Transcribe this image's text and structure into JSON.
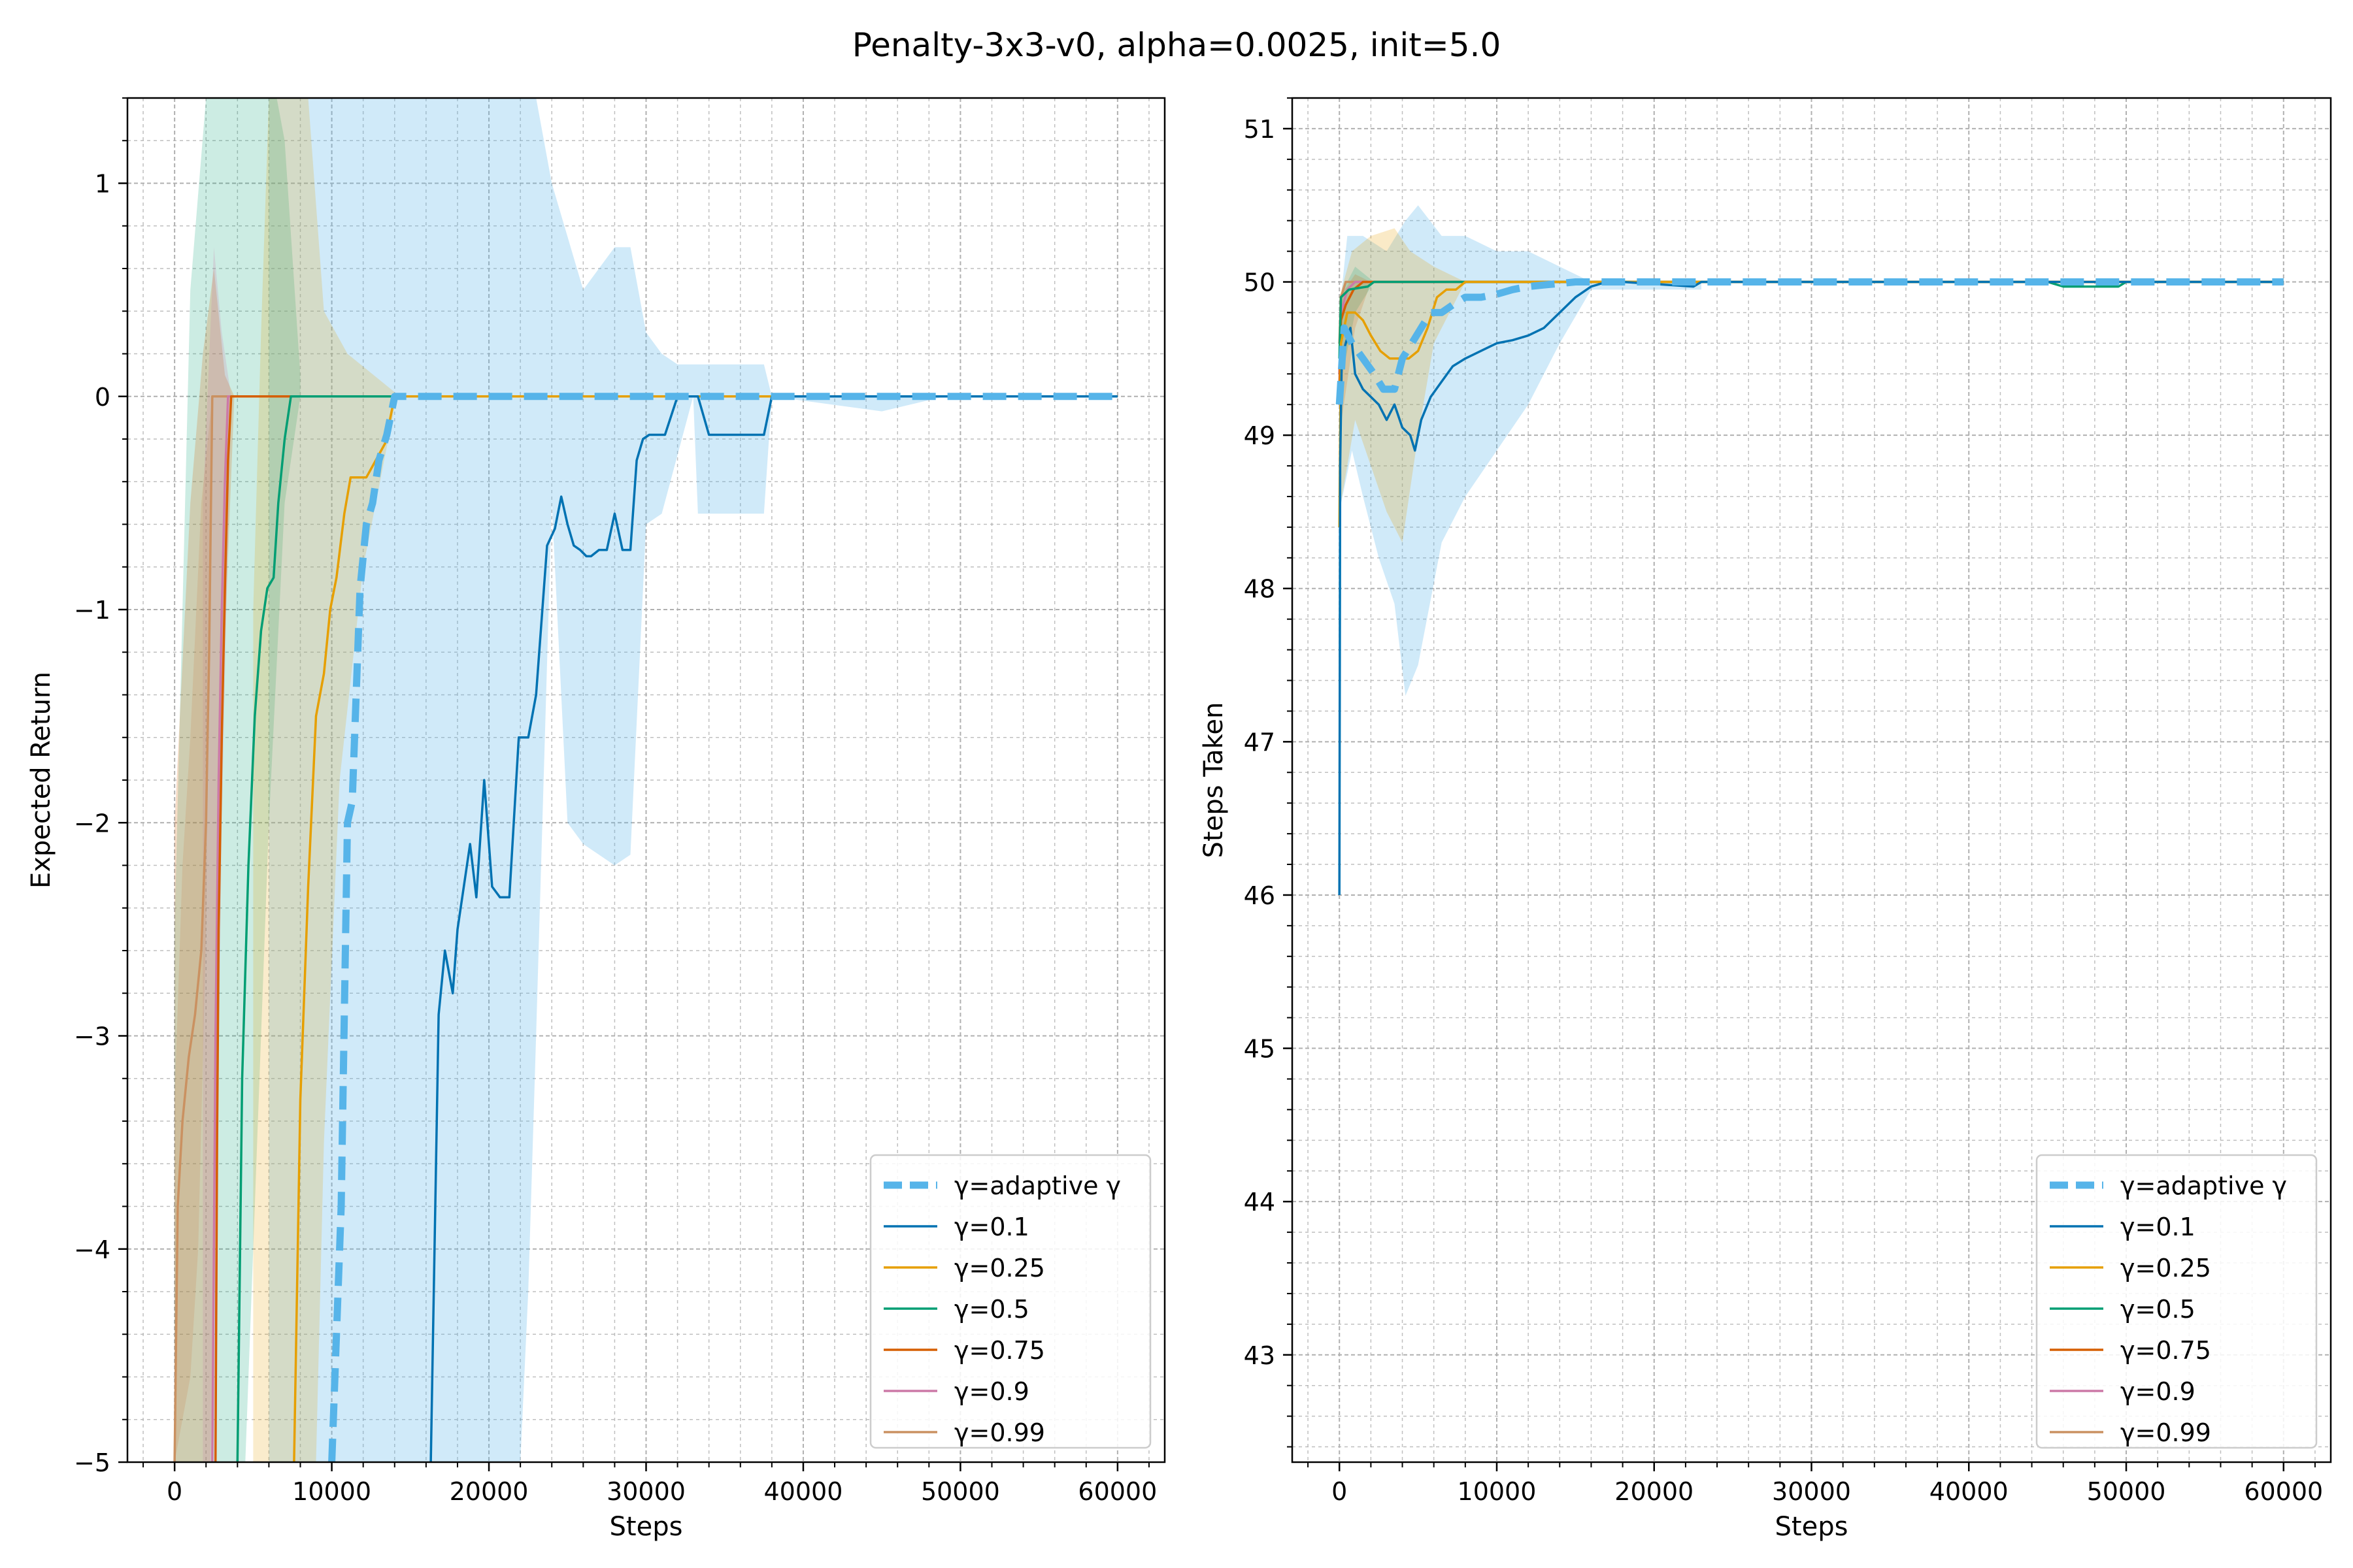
{
  "figure": {
    "title": "Penalty-3x3-v0, alpha=0.0025, init=5.0"
  },
  "colors": {
    "adaptive": "#56b4e9",
    "g01": "#0072b2",
    "g025": "#e69f00",
    "g05": "#009e73",
    "g075": "#d55e00",
    "g09": "#cc79a7",
    "g099": "#ca9161",
    "grid": "#b0b0b0"
  },
  "chart_data": [
    {
      "type": "line",
      "xlabel": "Steps",
      "ylabel": "Expected Return",
      "xlim": [
        -3000,
        63000
      ],
      "ylim": [
        -5,
        1.4
      ],
      "xticks": [
        0,
        10000,
        20000,
        30000,
        40000,
        50000,
        60000
      ],
      "xtick_labels": [
        "0",
        "10000",
        "20000",
        "30000",
        "40000",
        "50000",
        "60000"
      ],
      "yticks": [
        1,
        0,
        -1,
        -2,
        -3,
        -4,
        -5
      ],
      "ytick_labels": [
        "1",
        "0",
        "−1",
        "−2",
        "−3",
        "−4",
        "−5"
      ],
      "grid": true,
      "legend_position": "lower right",
      "series": [
        {
          "name": "γ=adaptive γ",
          "color": "#56b4e9",
          "style": "dashed",
          "x": [
            10000,
            10600,
            11000,
            11300,
            11800,
            12200,
            12600,
            13000,
            13500,
            14000,
            60000
          ],
          "y": [
            -5,
            -3.8,
            -2.0,
            -1.9,
            -0.9,
            -0.6,
            -0.5,
            -0.3,
            -0.18,
            0,
            0
          ]
        },
        {
          "name": "γ=0.1",
          "color": "#0072b2",
          "style": "solid",
          "x": [
            16300,
            16800,
            17200,
            17700,
            18000,
            18400,
            18800,
            19200,
            19700,
            20200,
            20700,
            21300,
            21900,
            22500,
            23000,
            23400,
            23700,
            24200,
            24600,
            25000,
            25400,
            25800,
            26200,
            26500,
            27000,
            27500,
            28000,
            28500,
            29000,
            29400,
            29800,
            30200,
            30700,
            31200,
            32000,
            33300,
            34000,
            37500,
            38000,
            60000
          ],
          "y": [
            -5,
            -2.9,
            -2.6,
            -2.8,
            -2.5,
            -2.3,
            -2.1,
            -2.35,
            -1.8,
            -2.3,
            -2.35,
            -2.35,
            -1.6,
            -1.6,
            -1.4,
            -1.0,
            -0.7,
            -0.62,
            -0.47,
            -0.6,
            -0.7,
            -0.72,
            -0.75,
            -0.75,
            -0.72,
            -0.72,
            -0.55,
            -0.72,
            -0.72,
            -0.3,
            -0.2,
            -0.18,
            -0.18,
            -0.18,
            0,
            0,
            -0.18,
            -0.18,
            0,
            0
          ]
        },
        {
          "name": "γ=0.25",
          "color": "#e69f00",
          "style": "solid",
          "x": [
            7600,
            8000,
            8500,
            9000,
            9500,
            9900,
            10300,
            10800,
            11200,
            11700,
            12200,
            12800,
            13400,
            14000,
            60000
          ],
          "y": [
            -5,
            -3.3,
            -2.3,
            -1.5,
            -1.3,
            -1.0,
            -0.85,
            -0.55,
            -0.38,
            -0.38,
            -0.38,
            -0.3,
            -0.22,
            0,
            0
          ]
        },
        {
          "name": "γ=0.5",
          "color": "#009e73",
          "style": "solid",
          "x": [
            4000,
            4300,
            4700,
            5100,
            5500,
            5900,
            6300,
            6600,
            7000,
            7400,
            7800,
            60000
          ],
          "y": [
            -5,
            -3.2,
            -2.2,
            -1.5,
            -1.1,
            -0.9,
            -0.85,
            -0.5,
            -0.2,
            0,
            0,
            0
          ]
        },
        {
          "name": "γ=0.75",
          "color": "#d55e00",
          "style": "solid",
          "x": [
            2600,
            2700,
            2800,
            3000,
            3200,
            3400,
            3600,
            60000
          ],
          "y": [
            -5,
            -3.5,
            -2.5,
            -1.6,
            -0.9,
            -0.3,
            0,
            0
          ]
        },
        {
          "name": "γ=0.9",
          "color": "#cc79a7",
          "style": "solid",
          "x": [
            2400,
            2600,
            2800,
            3000,
            3200,
            3400,
            60000
          ],
          "y": [
            -5,
            -3.0,
            -1.8,
            -1.0,
            -0.4,
            0,
            0
          ]
        },
        {
          "name": "γ=0.99",
          "color": "#ca9161",
          "style": "solid",
          "x": [
            0,
            200,
            500,
            900,
            1300,
            1700,
            2000,
            2200,
            2400,
            60000
          ],
          "y": [
            -5,
            -3.8,
            -3.4,
            -3.1,
            -2.9,
            -2.6,
            -2.0,
            -1.2,
            0,
            0
          ]
        }
      ]
    },
    {
      "type": "line",
      "xlabel": "Steps",
      "ylabel": "Steps Taken",
      "xlim": [
        -3000,
        63000
      ],
      "ylim": [
        42.3,
        51.2
      ],
      "xticks": [
        0,
        10000,
        20000,
        30000,
        40000,
        50000,
        60000
      ],
      "xtick_labels": [
        "0",
        "10000",
        "20000",
        "30000",
        "40000",
        "50000",
        "60000"
      ],
      "yticks": [
        43,
        44,
        45,
        46,
        47,
        48,
        49,
        50,
        51
      ],
      "ytick_labels": [
        "43",
        "44",
        "45",
        "46",
        "47",
        "48",
        "49",
        "50",
        "51"
      ],
      "grid": true,
      "legend_position": "lower right",
      "series": [
        {
          "name": "γ=adaptive γ",
          "color": "#56b4e9",
          "style": "dashed",
          "x": [
            0,
            300,
            800,
            1500,
            2200,
            2800,
            3500,
            4000,
            4600,
            5200,
            5800,
            6500,
            7200,
            8000,
            9000,
            10000,
            11000,
            12000,
            13000,
            14000,
            15000,
            16000,
            60000
          ],
          "y": [
            49.2,
            49.7,
            49.6,
            49.5,
            49.4,
            49.3,
            49.3,
            49.5,
            49.6,
            49.7,
            49.8,
            49.8,
            49.85,
            49.9,
            49.9,
            49.92,
            49.95,
            49.97,
            49.98,
            49.99,
            50.0,
            50.0,
            50.0
          ]
        },
        {
          "name": "γ=0.1",
          "color": "#0072b2",
          "style": "solid",
          "x": [
            0,
            50,
            150,
            400,
            700,
            1000,
            1500,
            2000,
            2500,
            3000,
            3500,
            4000,
            4500,
            4800,
            5200,
            5800,
            6500,
            7200,
            8000,
            9000,
            10000,
            11000,
            12000,
            13000,
            14000,
            15000,
            16000,
            17000,
            18000,
            22500,
            23000,
            60000
          ],
          "y": [
            46.0,
            48.8,
            49.5,
            49.6,
            49.7,
            49.4,
            49.3,
            49.25,
            49.2,
            49.1,
            49.2,
            49.05,
            49.0,
            48.9,
            49.1,
            49.25,
            49.35,
            49.45,
            49.5,
            49.55,
            49.6,
            49.62,
            49.65,
            49.7,
            49.8,
            49.9,
            49.97,
            50.0,
            50.0,
            49.97,
            50.0,
            50.0
          ]
        },
        {
          "name": "γ=0.25",
          "color": "#e69f00",
          "style": "solid",
          "x": [
            0,
            100,
            500,
            1000,
            1500,
            2000,
            2600,
            3200,
            3800,
            4400,
            5000,
            5600,
            6200,
            6800,
            7400,
            8000,
            60000
          ],
          "y": [
            48.4,
            49.6,
            49.8,
            49.8,
            49.75,
            49.65,
            49.55,
            49.5,
            49.5,
            49.5,
            49.55,
            49.7,
            49.9,
            49.95,
            49.95,
            50.0,
            50.0
          ]
        },
        {
          "name": "γ=0.5",
          "color": "#009e73",
          "style": "solid",
          "x": [
            0,
            100,
            600,
            1200,
            1800,
            2200,
            45000,
            46000,
            49500,
            50000,
            60000
          ],
          "y": [
            49.5,
            49.9,
            49.95,
            49.96,
            49.97,
            50.0,
            50.0,
            49.97,
            49.97,
            50.0,
            50.0
          ]
        },
        {
          "name": "γ=0.75",
          "color": "#d55e00",
          "style": "solid",
          "x": [
            0,
            100,
            400,
            900,
            1500,
            2000,
            60000
          ],
          "y": [
            49.3,
            49.75,
            49.85,
            49.95,
            50.0,
            50.0,
            50.0
          ]
        },
        {
          "name": "γ=0.9",
          "color": "#cc79a7",
          "style": "solid",
          "x": [
            0,
            100,
            500,
            1000,
            1500,
            60000
          ],
          "y": [
            49.4,
            49.8,
            49.95,
            50.0,
            50.0,
            50.0
          ]
        },
        {
          "name": "γ=0.99",
          "color": "#ca9161",
          "style": "solid",
          "x": [
            0,
            100,
            400,
            800,
            60000
          ],
          "y": [
            49.6,
            49.9,
            50.0,
            50.0,
            50.0
          ]
        }
      ]
    }
  ]
}
